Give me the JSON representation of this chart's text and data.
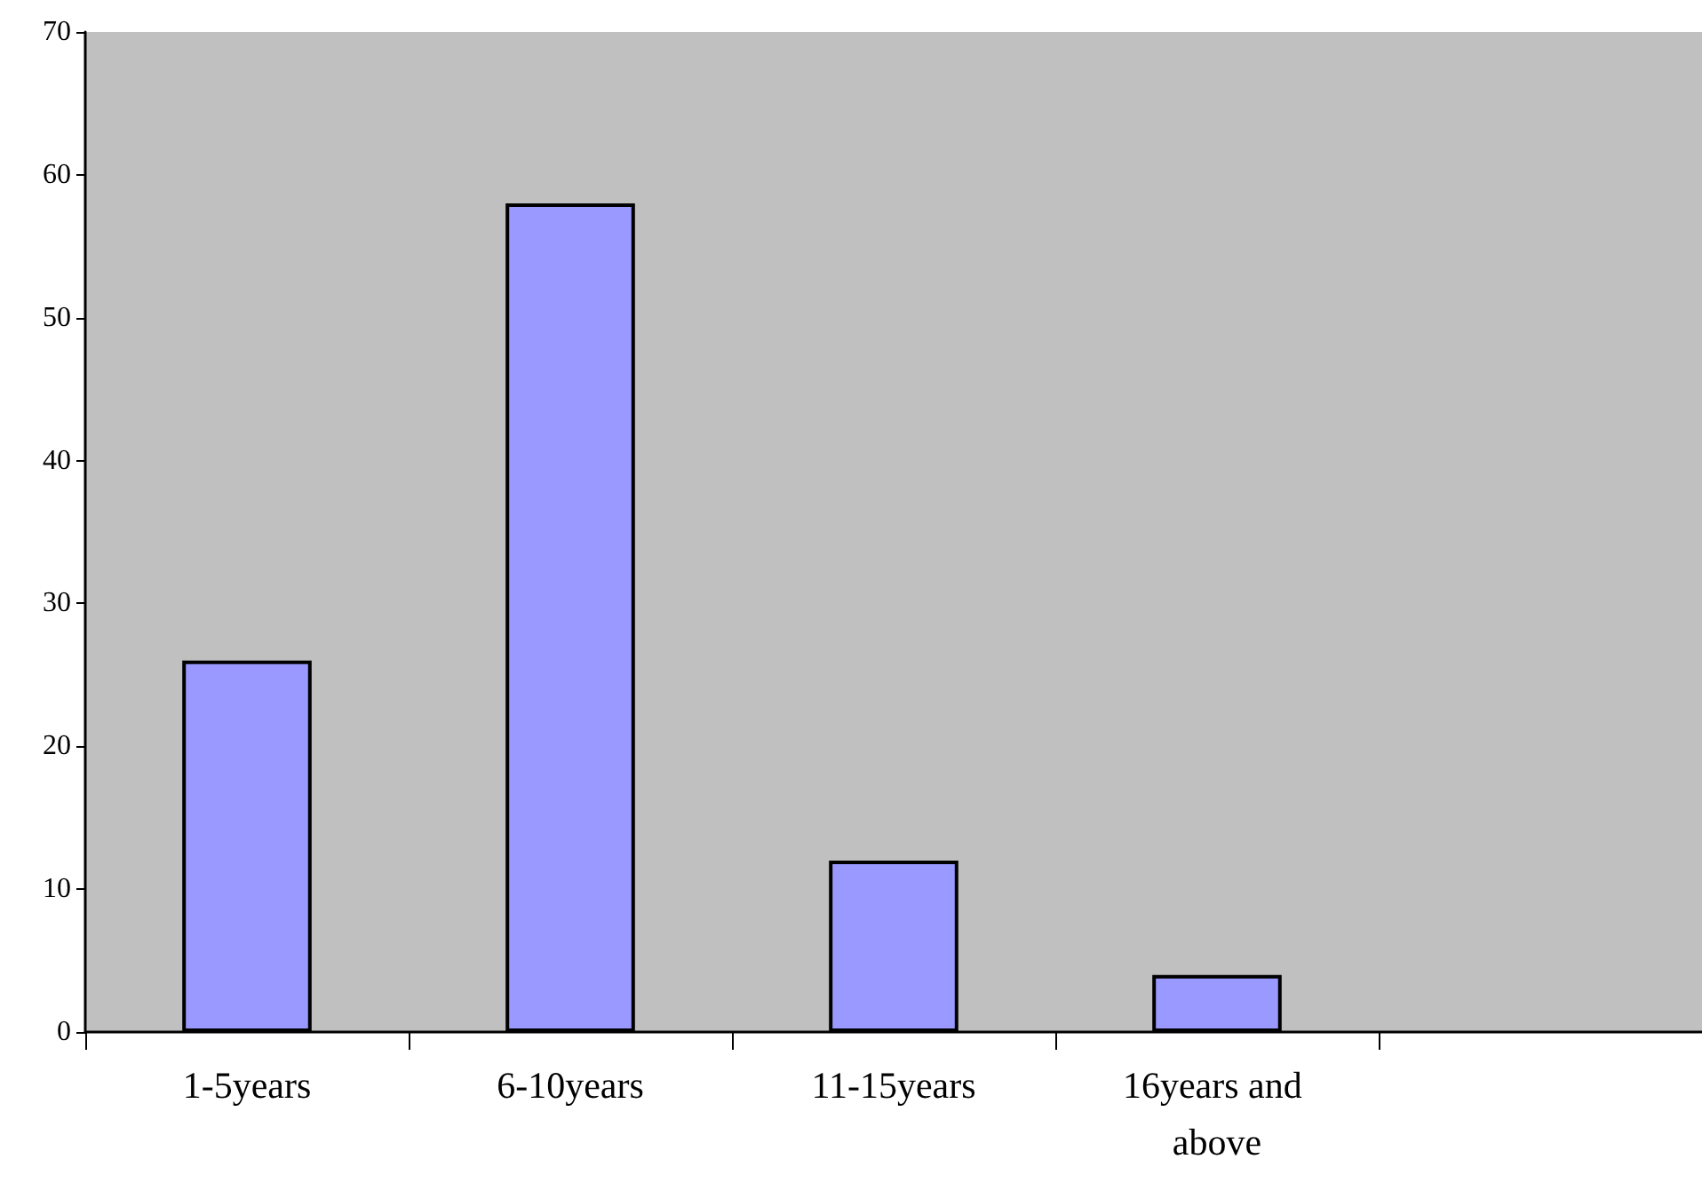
{
  "chart_data": {
    "type": "bar",
    "categories": [
      "1-5years",
      "6-10years",
      "11-15years",
      "16years and above",
      null
    ],
    "values": [
      26,
      58,
      12,
      4,
      null
    ],
    "color": "#9999ff",
    "ylim": [
      0,
      70
    ],
    "yticks": [
      0,
      10,
      20,
      30,
      40,
      50,
      60,
      70
    ],
    "grid": false
  }
}
